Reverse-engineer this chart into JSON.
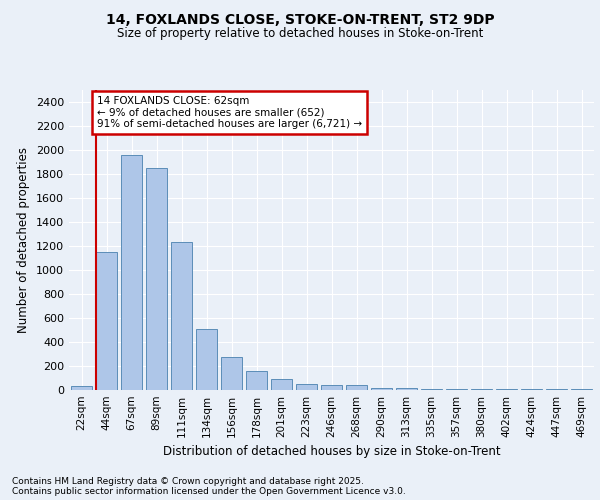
{
  "title1": "14, FOXLANDS CLOSE, STOKE-ON-TRENT, ST2 9DP",
  "title2": "Size of property relative to detached houses in Stoke-on-Trent",
  "xlabel": "Distribution of detached houses by size in Stoke-on-Trent",
  "ylabel": "Number of detached properties",
  "categories": [
    "22sqm",
    "44sqm",
    "67sqm",
    "89sqm",
    "111sqm",
    "134sqm",
    "156sqm",
    "178sqm",
    "201sqm",
    "223sqm",
    "246sqm",
    "268sqm",
    "290sqm",
    "313sqm",
    "335sqm",
    "357sqm",
    "380sqm",
    "402sqm",
    "424sqm",
    "447sqm",
    "469sqm"
  ],
  "values": [
    30,
    1150,
    1960,
    1850,
    1230,
    510,
    275,
    155,
    90,
    50,
    40,
    40,
    20,
    20,
    5,
    5,
    5,
    5,
    5,
    5,
    5
  ],
  "bar_color": "#aec6e8",
  "bar_edge_color": "#5b8db8",
  "vline_x_index": 1,
  "annotation_text": "14 FOXLANDS CLOSE: 62sqm\n← 9% of detached houses are smaller (652)\n91% of semi-detached houses are larger (6,721) →",
  "ylim": [
    0,
    2500
  ],
  "yticks": [
    0,
    200,
    400,
    600,
    800,
    1000,
    1200,
    1400,
    1600,
    1800,
    2000,
    2200,
    2400
  ],
  "footer1": "Contains HM Land Registry data © Crown copyright and database right 2025.",
  "footer2": "Contains public sector information licensed under the Open Government Licence v3.0.",
  "bg_color": "#eaf0f8",
  "plot_bg_color": "#eaf0f8",
  "grid_color": "#ffffff",
  "annotation_box_color": "#cc0000",
  "vline_color": "#cc0000"
}
